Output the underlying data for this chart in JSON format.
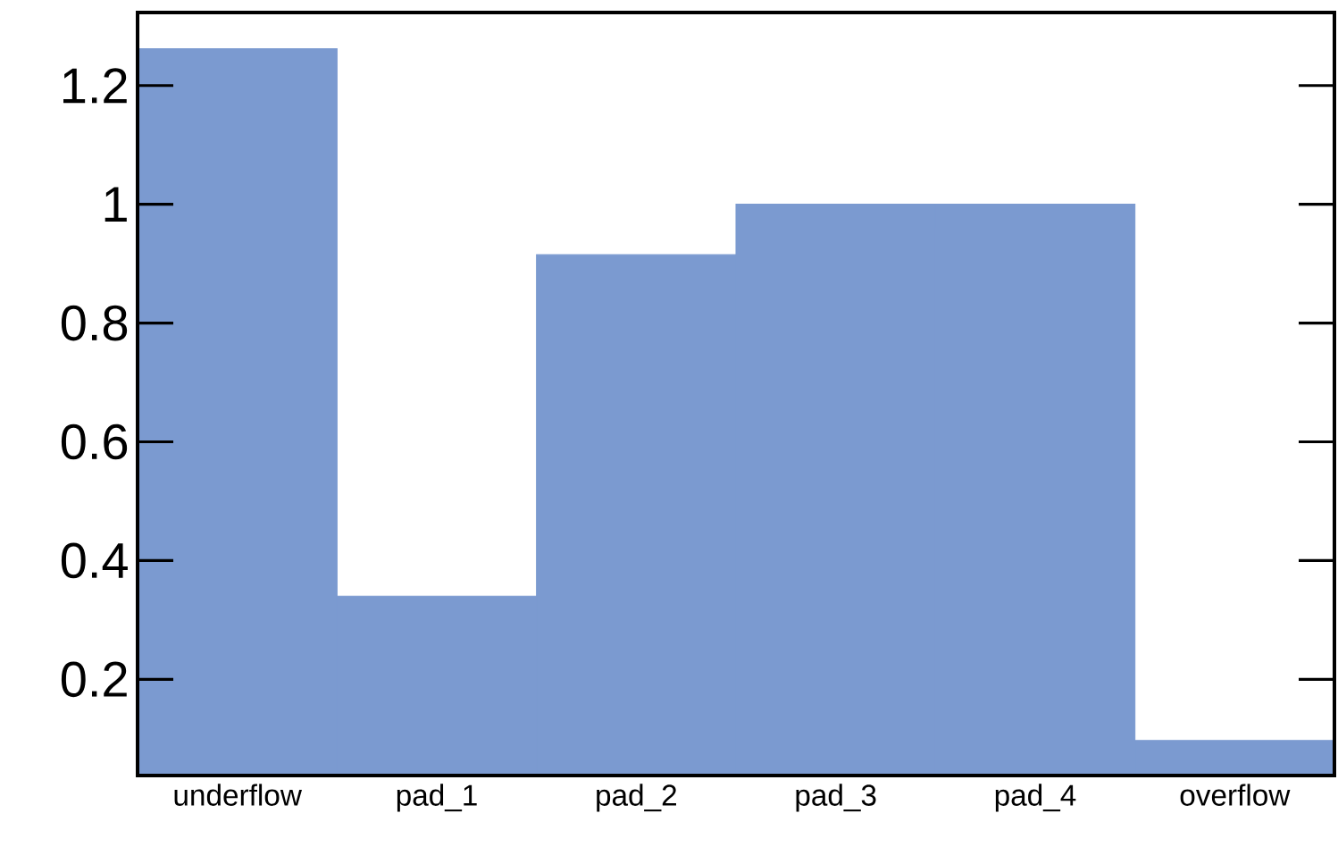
{
  "chart_data": {
    "type": "bar",
    "categories": [
      "underflow",
      "pad_1",
      "pad_2",
      "pad_3",
      "pad_4",
      "overflow"
    ],
    "values": [
      1.262,
      0.34,
      0.915,
      1.0,
      1.0,
      0.097
    ],
    "color": "#7b9ad0",
    "ylim": [
      0.038,
      1.323
    ],
    "yticks": [
      0.2,
      0.4,
      0.6,
      0.8,
      1,
      1.2
    ],
    "grid": false
  }
}
